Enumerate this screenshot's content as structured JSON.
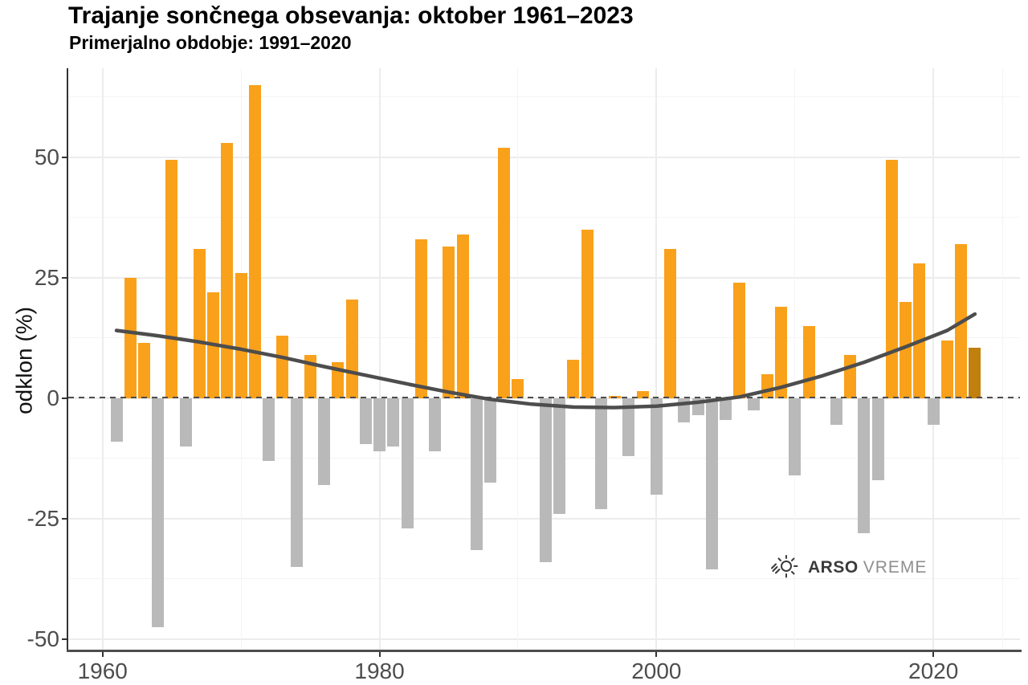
{
  "title": "Trajanje sončnega obsevanja: oktober 1961–2023",
  "subtitle": "Primerjalno obdobje: 1991–2020",
  "y_axis_label": "odklon (%)",
  "logo": {
    "icon": "sun-icon",
    "brand_bold": "ARSO",
    "brand_light": "VREME"
  },
  "colors": {
    "positive_bar": "#F9A11B",
    "negative_bar": "#B9B9B9",
    "highlight_bar": "#C0800D",
    "trend_line": "#4D4D4D",
    "axis_text": "#4D4D4D",
    "title_text": "#000000"
  },
  "chart_data": {
    "type": "bar",
    "title": "Trajanje sončnega obsevanja: oktober 1961–2023",
    "subtitle": "Primerjalno obdobje: 1991–2020",
    "xlabel": "",
    "ylabel": "odklon (%)",
    "ylim": [
      -52,
      68
    ],
    "xlim": [
      1960,
      2025
    ],
    "y_ticks": [
      50,
      25,
      0,
      -25,
      -50
    ],
    "y_minor": [
      62.5,
      37.5,
      12.5,
      -12.5,
      -37.5
    ],
    "x_ticks": [
      1960,
      1980,
      2000,
      2020
    ],
    "x_minor": [
      1970,
      1990,
      2010,
      2025
    ],
    "zero_line": "dashed",
    "legend_position": "none",
    "highlight_year": 2023,
    "years": [
      1961,
      1962,
      1963,
      1964,
      1965,
      1966,
      1967,
      1968,
      1969,
      1970,
      1971,
      1972,
      1973,
      1974,
      1975,
      1976,
      1977,
      1978,
      1979,
      1980,
      1981,
      1982,
      1983,
      1984,
      1985,
      1986,
      1987,
      1988,
      1989,
      1990,
      1991,
      1992,
      1993,
      1994,
      1995,
      1996,
      1997,
      1998,
      1999,
      2000,
      2001,
      2002,
      2003,
      2004,
      2005,
      2006,
      2007,
      2008,
      2009,
      2010,
      2011,
      2012,
      2013,
      2014,
      2015,
      2016,
      2017,
      2018,
      2019,
      2020,
      2021,
      2022,
      2023
    ],
    "values": [
      -9,
      25,
      11.5,
      -47.5,
      49.5,
      -10,
      31,
      22,
      53,
      26,
      65,
      -13,
      13,
      -35,
      9,
      -18,
      7.5,
      20.5,
      -9.5,
      -11,
      -10,
      -27,
      33,
      -11,
      31.5,
      34,
      -31.5,
      -17.5,
      52,
      4,
      0,
      -34,
      -24,
      8,
      35,
      -23,
      0.5,
      -12,
      1.5,
      -20,
      31,
      -5,
      -3.5,
      -35.5,
      -4.5,
      24,
      -2.5,
      5,
      19,
      -16,
      15,
      0,
      -5.5,
      9,
      -28,
      -17,
      49.5,
      20,
      28,
      -5.5,
      12,
      32,
      10.5
    ],
    "trend": {
      "years": [
        1961,
        1964,
        1967,
        1970,
        1973,
        1976,
        1979,
        1982,
        1985,
        1988,
        1991,
        1994,
        1997,
        2000,
        2003,
        2006,
        2009,
        2012,
        2015,
        2018,
        2021,
        2023
      ],
      "values": [
        14,
        12.9,
        11.6,
        10.1,
        8.4,
        6.5,
        4.7,
        2.9,
        1.2,
        -0.3,
        -1.3,
        -1.9,
        -2.0,
        -1.7,
        -0.9,
        0.2,
        2.2,
        4.6,
        7.4,
        10.6,
        14,
        17.4
      ]
    }
  }
}
